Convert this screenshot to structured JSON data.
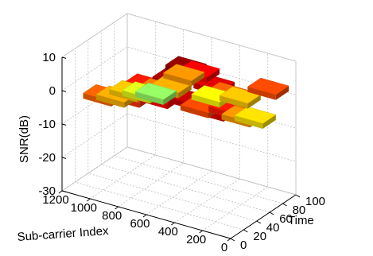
{
  "chart_data": {
    "type": "3d-bar-surface",
    "title": "",
    "xlabel": "Sub-carrier Index",
    "ylabel": "Time",
    "zlabel": "SNR(dB)",
    "x_ticks": [
      "1200",
      "1000",
      "800",
      "600",
      "400",
      "200",
      "0"
    ],
    "y_ticks": [
      "0",
      "20",
      "40",
      "60",
      "80",
      "100"
    ],
    "z_ticks": [
      "10",
      "0",
      "-10",
      "-20",
      "-30"
    ],
    "xlim": [
      0,
      1200
    ],
    "ylim": [
      0,
      100
    ],
    "zlim": [
      -30,
      10
    ],
    "grid": true,
    "colormap": "hot",
    "tiles": [
      {
        "x": 150,
        "y": 10,
        "snr": 6
      },
      {
        "x": 350,
        "y": 10,
        "snr": 7
      },
      {
        "x": 550,
        "y": 10,
        "snr": 5
      },
      {
        "x": 750,
        "y": 10,
        "snr": 3
      },
      {
        "x": 950,
        "y": 10,
        "snr": 1
      },
      {
        "x": 150,
        "y": 30,
        "snr": 4
      },
      {
        "x": 350,
        "y": 30,
        "snr": 2
      },
      {
        "x": 550,
        "y": 30,
        "snr": 8
      },
      {
        "x": 750,
        "y": 30,
        "snr": 4
      },
      {
        "x": 950,
        "y": 30,
        "snr": -2
      },
      {
        "x": 150,
        "y": 50,
        "snr": -1
      },
      {
        "x": 350,
        "y": 50,
        "snr": 6
      },
      {
        "x": 550,
        "y": 50,
        "snr": 9
      },
      {
        "x": 750,
        "y": 50,
        "snr": 0
      },
      {
        "x": 950,
        "y": 50,
        "snr": -3
      },
      {
        "x": 150,
        "y": 70,
        "snr": -4
      },
      {
        "x": 350,
        "y": 70,
        "snr": 1
      },
      {
        "x": 550,
        "y": 70,
        "snr": 5
      },
      {
        "x": 750,
        "y": 70,
        "snr": -2
      },
      {
        "x": 950,
        "y": 70,
        "snr": -6
      },
      {
        "x": 150,
        "y": 90,
        "snr": 2
      },
      {
        "x": 350,
        "y": 90,
        "snr": -3
      },
      {
        "x": 550,
        "y": 90,
        "snr": -5
      },
      {
        "x": 750,
        "y": 90,
        "snr": -1
      },
      {
        "x": 950,
        "y": 90,
        "snr": -9
      }
    ]
  }
}
